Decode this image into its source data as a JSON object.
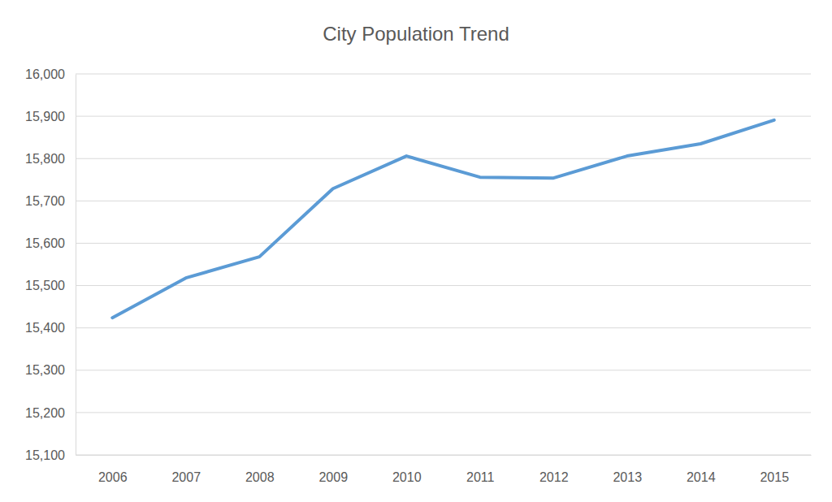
{
  "chart_data": {
    "type": "line",
    "title": "City Population Trend",
    "categories": [
      "2006",
      "2007",
      "2008",
      "2009",
      "2010",
      "2011",
      "2012",
      "2013",
      "2014",
      "2015"
    ],
    "values": [
      15424,
      15518,
      15568,
      15729,
      15806,
      15756,
      15754,
      15806,
      15835,
      15891
    ],
    "color": "#5b9bd5",
    "ylim": [
      15100,
      16000
    ],
    "yticks": [
      {
        "value": 15100,
        "label": "15,100"
      },
      {
        "value": 15200,
        "label": "15,200"
      },
      {
        "value": 15300,
        "label": "15,300"
      },
      {
        "value": 15400,
        "label": "15,400"
      },
      {
        "value": 15500,
        "label": "15,500"
      },
      {
        "value": 15600,
        "label": "15,600"
      },
      {
        "value": 15700,
        "label": "15,700"
      },
      {
        "value": 15800,
        "label": "15,800"
      },
      {
        "value": 15900,
        "label": "15,900"
      },
      {
        "value": 16000,
        "label": "16,000"
      }
    ],
    "grid": true
  }
}
